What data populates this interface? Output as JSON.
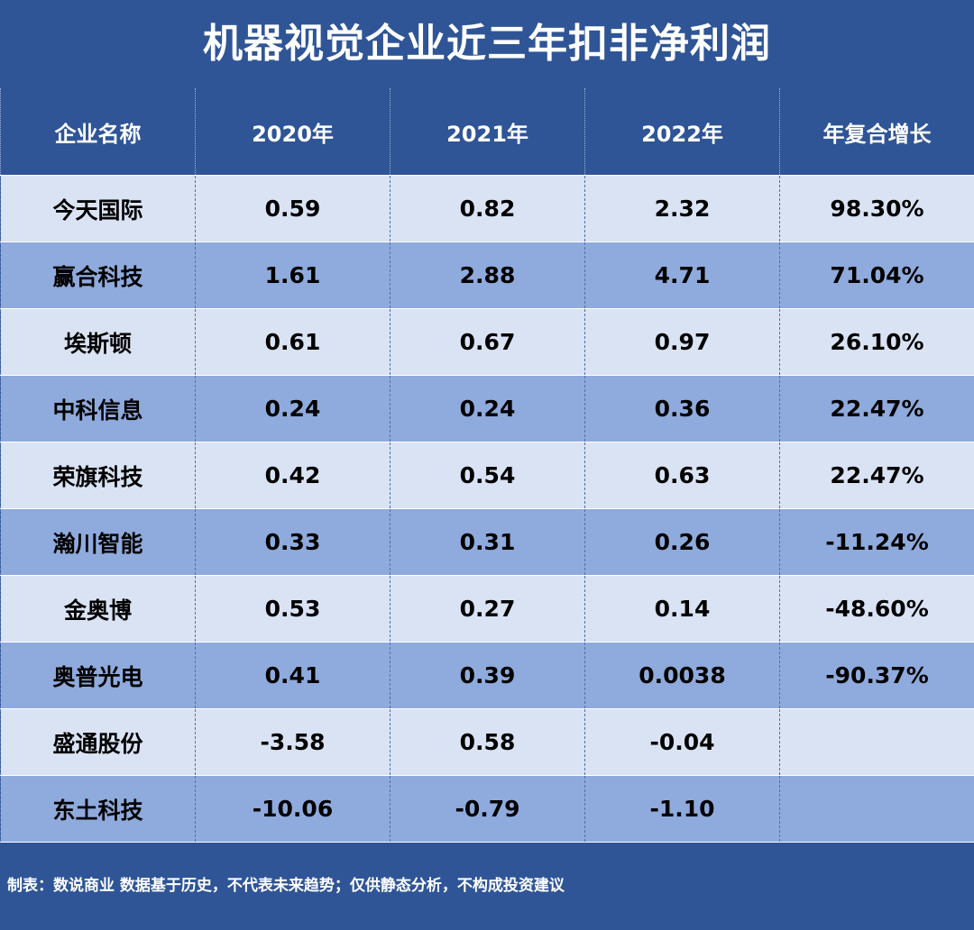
{
  "title": "机器视觉企业近三年扣非净利润",
  "headers": [
    "企业名称",
    "2020年",
    "2021年",
    "2022年",
    "年复合增长"
  ],
  "rows": [
    [
      "今天国际",
      "0.59",
      "0.82",
      "2.32",
      "98.30%"
    ],
    [
      "赢合科技",
      "1.61",
      "2.88",
      "4.71",
      "71.04%"
    ],
    [
      "埃斯顿",
      "0.61",
      "0.67",
      "0.97",
      "26.10%"
    ],
    [
      "中科信息",
      "0.24",
      "0.24",
      "0.36",
      "22.47%"
    ],
    [
      "荣旗科技",
      "0.42",
      "0.54",
      "0.63",
      "22.47%"
    ],
    [
      "瀚川智能",
      "0.33",
      "0.31",
      "0.26",
      "-11.24%"
    ],
    [
      "金奥博",
      "0.53",
      "0.27",
      "0.14",
      "-48.60%"
    ],
    [
      "奥普光电",
      "0.41",
      "0.39",
      "0.0038",
      "-90.37%"
    ],
    [
      "盛通股份",
      "-3.58",
      "0.58",
      "-0.04",
      ""
    ],
    [
      "东土科技",
      "-10.06",
      "-0.79",
      "-1.10",
      ""
    ]
  ],
  "footer": "制表：数说商业 数据基于历史，不代表未来趋势；仅供静态分析，不构成投资建议",
  "colors": {
    "header_bg": "#2f5596",
    "row_light": "#dae3f3",
    "row_dark": "#8faadc"
  }
}
